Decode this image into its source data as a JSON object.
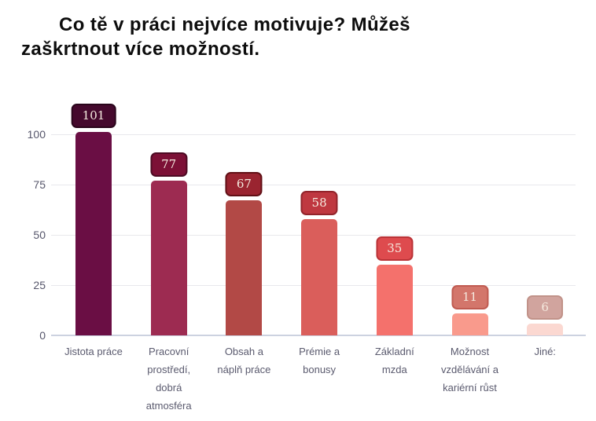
{
  "chart_data": {
    "type": "bar",
    "title": "Co tě v práci nejvíce motivuje? Můžeš zaškrtnout více možností.",
    "title_lines": [
      "Co tě v práci nejvíce motivuje? Můžeš",
      "zaškrtnout více možností."
    ],
    "categories": [
      "Jistota práce",
      "Pracovní prostředí, dobrá atmosféra",
      "Obsah a náplň práce",
      "Prémie a bonusy",
      "Základní mzda",
      "Možnost vzdělávání a kariérní růst",
      "Jiné:"
    ],
    "category_wrapped": [
      "Jistota práce",
      "Pracovní\nprostředí,\ndobrá\natmosféra",
      "Obsah a\nnáplň práce",
      "Prémie a\nbonusy",
      "Základní\nmzda",
      "Možnost\nvzdělávání a\nkariérní růst",
      "Jiné:"
    ],
    "values": [
      101,
      77,
      67,
      58,
      35,
      11,
      6
    ],
    "xlabel": "",
    "ylabel": "",
    "yticks": [
      0,
      25,
      50,
      75,
      100
    ],
    "ylim": [
      0,
      105
    ],
    "grid": true,
    "legend": false,
    "bar_styles": [
      {
        "bar": "#6A0E44",
        "badge_bg": "#45092D",
        "badge_border": "#2A051B"
      },
      {
        "bar": "#9D2B51",
        "badge_bg": "#7C1036",
        "badge_border": "#4C0A23"
      },
      {
        "bar": "#B24946",
        "badge_bg": "#9A2430",
        "badge_border": "#611016"
      },
      {
        "bar": "#DA5E5B",
        "badge_bg": "#BF3840",
        "badge_border": "#92242B"
      },
      {
        "bar": "#F4716C",
        "badge_bg": "#DE4B4E",
        "badge_border": "#BA3337"
      },
      {
        "bar": "#F99A8C",
        "badge_bg": "#D3766B",
        "badge_border": "#C05B51"
      },
      {
        "bar": "#FBD8D1",
        "badge_bg": "#D1A49E",
        "badge_border": "#C19289"
      }
    ],
    "colors": {
      "badge_text": "#F5EADF",
      "gridline": "#e8e8ec",
      "baseline": "#ccd2e0",
      "axis_tick_text": "#56566b",
      "category_text": "#5a5a6e",
      "title_text": "#0d0d0d",
      "background": "#ffffff"
    }
  }
}
